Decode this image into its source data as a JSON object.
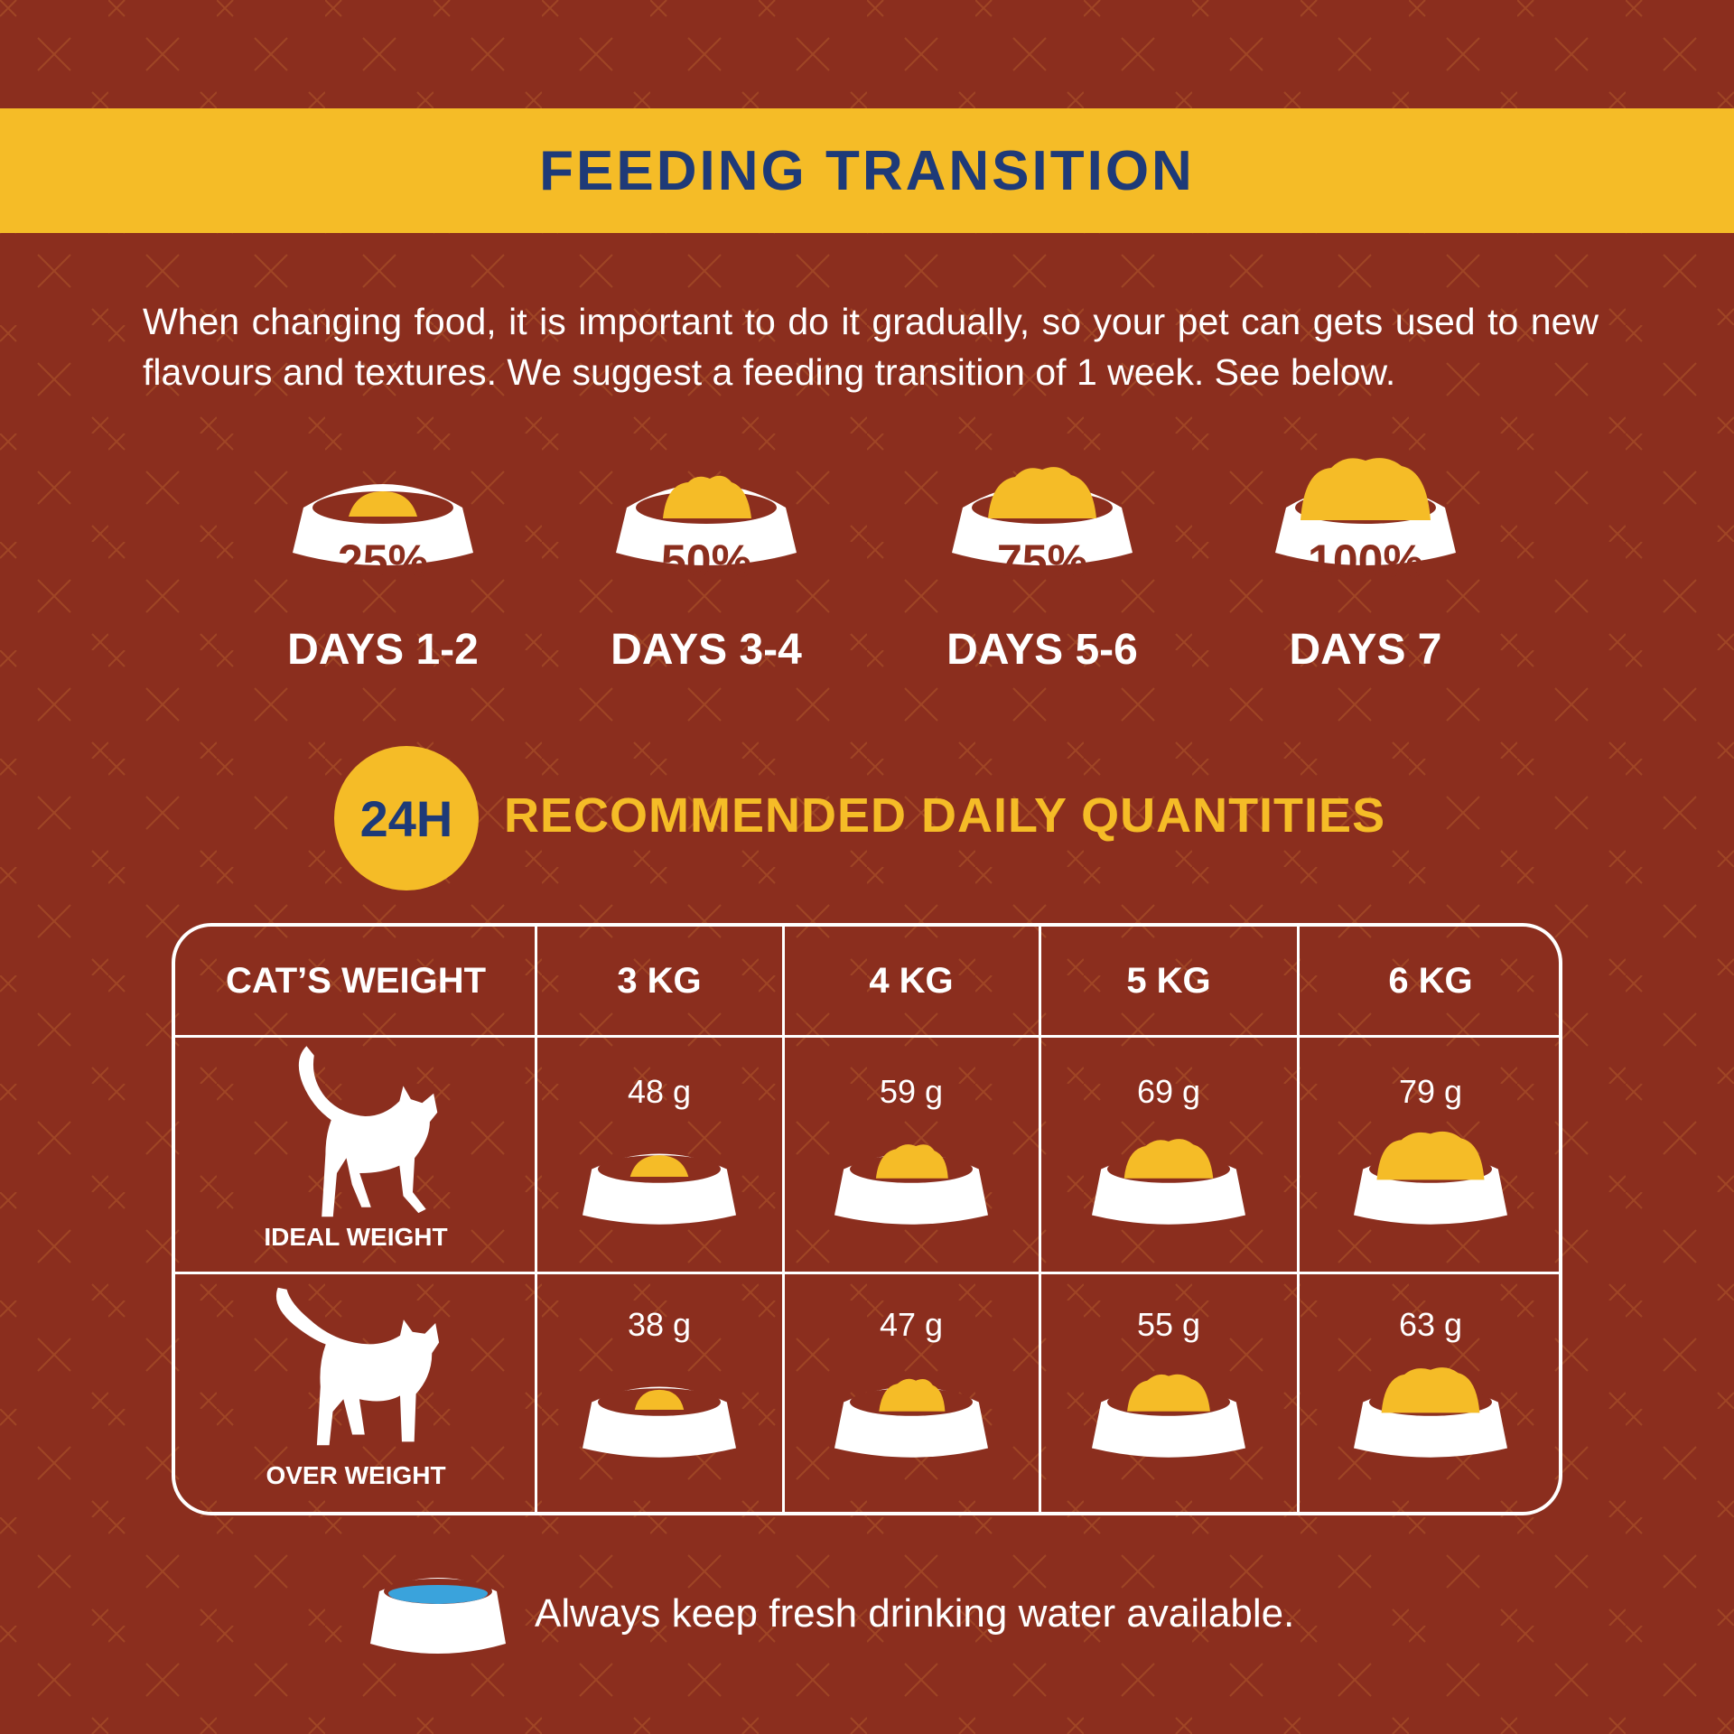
{
  "colors": {
    "background": "#8b2e1e",
    "accent_yellow": "#f5bc27",
    "title_blue": "#1e3a78",
    "white": "#ffffff",
    "water_blue": "#3aa3dc"
  },
  "header": {
    "title": "FEEDING TRANSITION"
  },
  "intro": {
    "text": "When changing food, it is important to do it gradually, so your pet can gets used  to new flavours and textures.  We suggest a feeding transition of 1 week. See below."
  },
  "stages": [
    {
      "percent_label": "25%",
      "days": "DAYS 1-2",
      "icon": "food-bowl-icon",
      "fill": 0.25
    },
    {
      "percent_label": "50%",
      "days": "DAYS 3-4",
      "icon": "food-bowl-icon",
      "fill": 0.5
    },
    {
      "percent_label": "75%",
      "days": "DAYS 5-6",
      "icon": "food-bowl-icon",
      "fill": 0.75
    },
    {
      "percent_label": "100%",
      "days": "DAYS 7",
      "icon": "food-bowl-icon",
      "fill": 1.0
    }
  ],
  "quantities": {
    "badge": "24H",
    "title": "RECOMMENDED DAILY QUANTITIES"
  },
  "table": {
    "header_label": "CAT’S WEIGHT",
    "weights": [
      "3 KG",
      "4 KG",
      "5 KG",
      "6 KG"
    ],
    "rows": [
      {
        "label": "IDEAL WEIGHT",
        "icon": "cat-silhouette-icon",
        "values": [
          "48 g",
          "59 g",
          "69 g",
          "79 g"
        ],
        "bowl_levels": [
          1,
          2,
          3,
          4
        ]
      },
      {
        "label": "OVER WEIGHT",
        "icon": "cat-silhouette-icon",
        "values": [
          "38 g",
          "47 g",
          "55 g",
          "63 g"
        ],
        "bowl_levels": [
          1,
          2,
          3,
          4
        ]
      }
    ]
  },
  "footer": {
    "icon": "water-bowl-icon",
    "note": "Always keep fresh drinking water available."
  }
}
